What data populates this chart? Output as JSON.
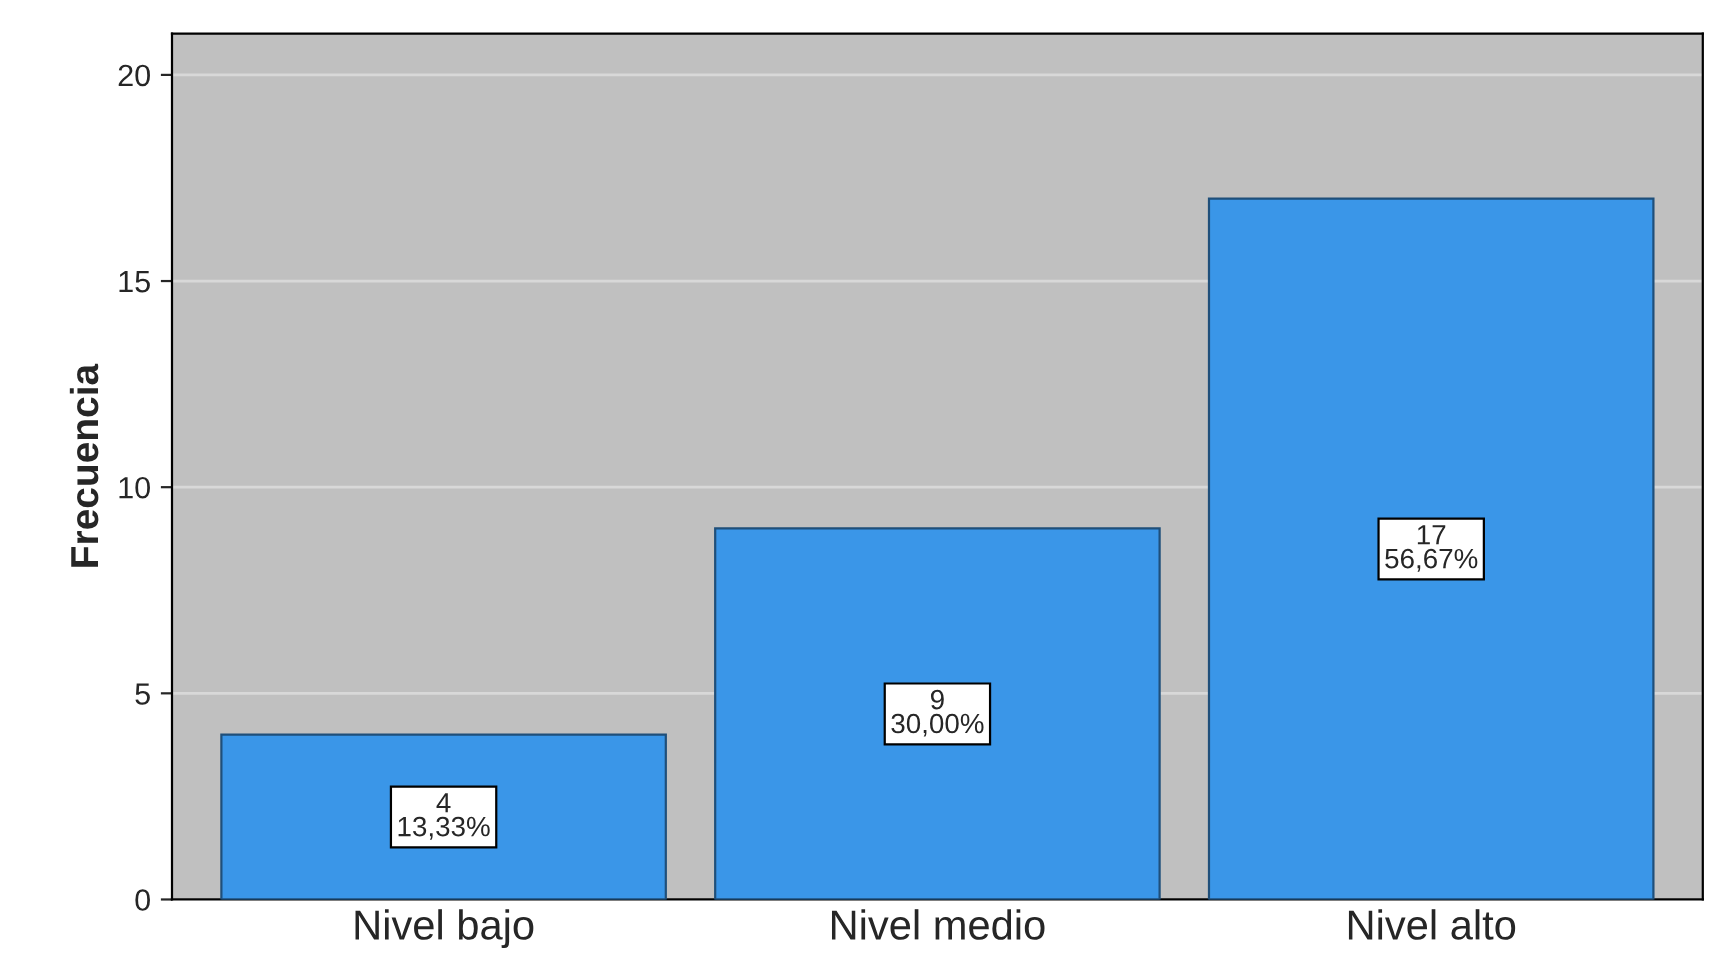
{
  "chart_data": {
    "type": "bar",
    "ylabel": "Frecuencia",
    "categories": [
      "Nivel bajo",
      "Nivel medio",
      "Nivel alto"
    ],
    "values": [
      4,
      9,
      17
    ],
    "value_labels": [
      "4\n13,33%",
      "9\n30,00%",
      "17\n56,67%"
    ],
    "color": "#3a96e8",
    "ylim": [
      0,
      21
    ],
    "yticks": [
      0,
      5,
      10,
      15,
      20
    ],
    "grid": "y"
  }
}
